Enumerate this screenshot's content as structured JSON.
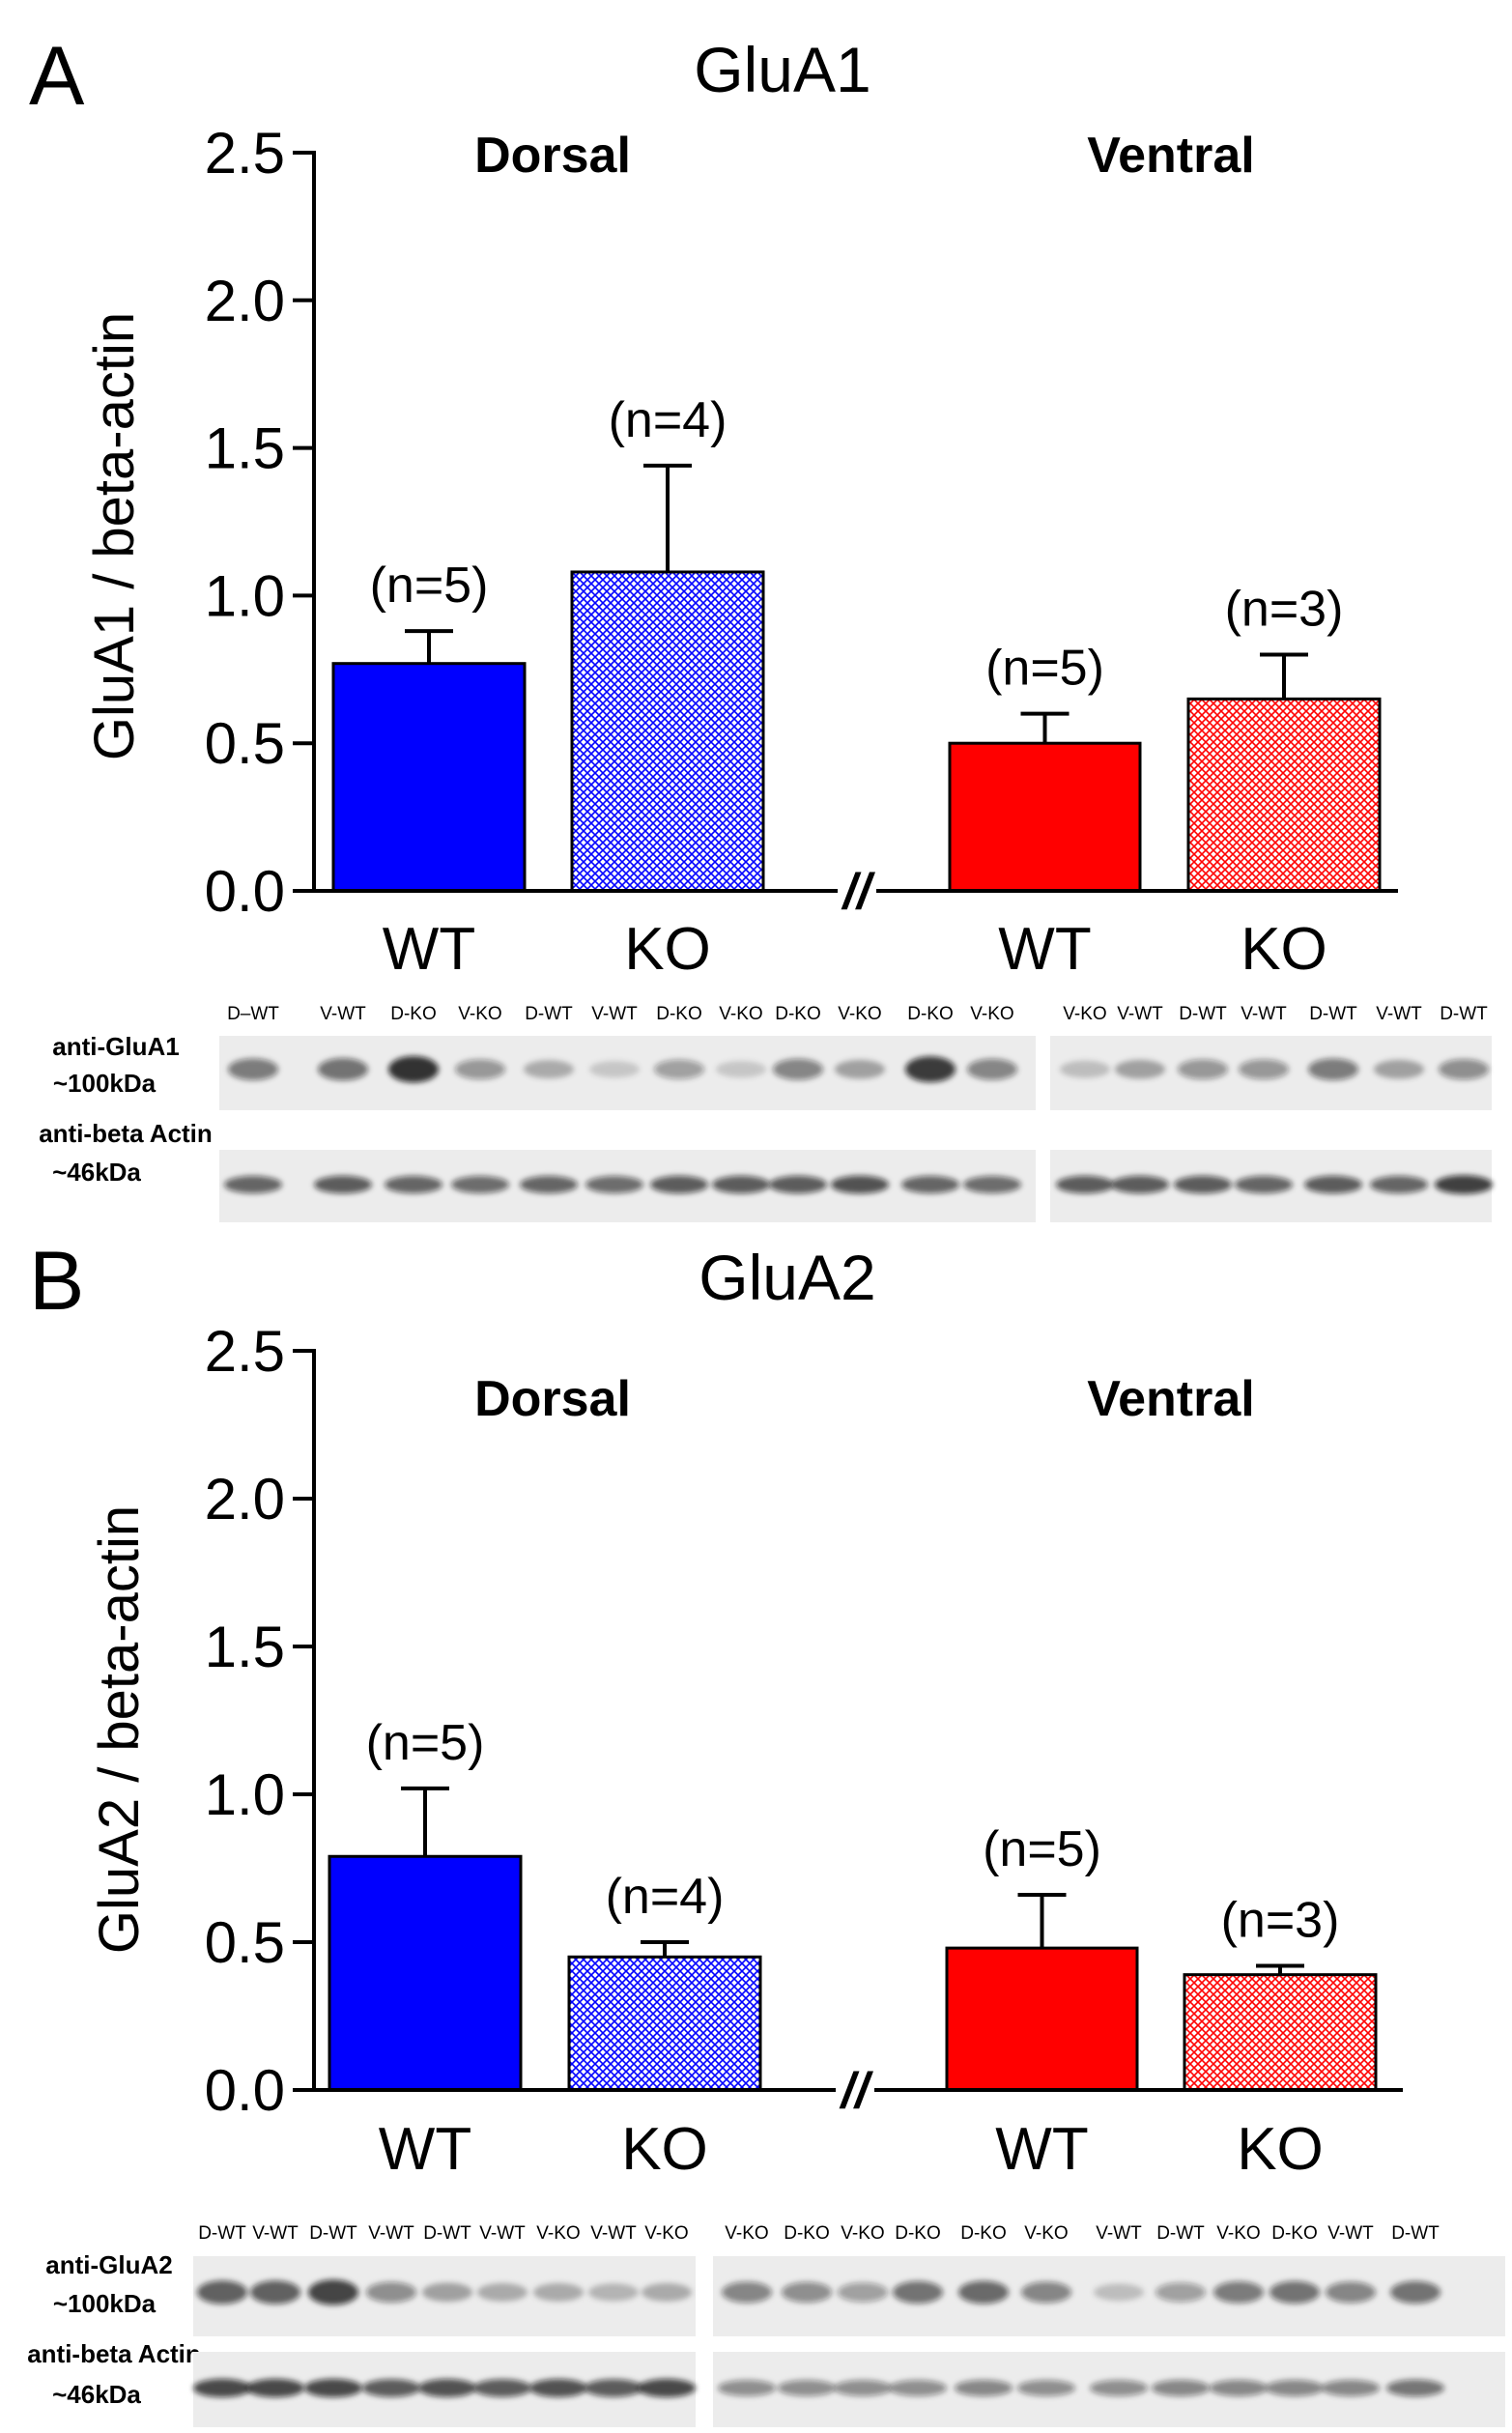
{
  "panels": [
    {
      "letter": "A",
      "chart_data": {
        "type": "bar",
        "title": "GluA1",
        "ylabel": "GluA1 / beta-actin",
        "ylim": [
          0,
          2.5
        ],
        "yticks": [
          "0.0",
          "0.5",
          "1.0",
          "1.5",
          "2.0",
          "2.5"
        ],
        "groups": [
          "Dorsal",
          "Ventral"
        ],
        "categories": [
          "WT",
          "KO",
          "WT",
          "KO"
        ],
        "values": [
          0.77,
          1.08,
          0.5,
          0.65
        ],
        "errors": [
          0.11,
          0.36,
          0.1,
          0.15
        ],
        "n_labels": [
          "(n=5)",
          "(n=4)",
          "(n=5)",
          "(n=3)"
        ],
        "break_mark": "//"
      },
      "blot": {
        "target_label": [
          "anti-GluA1",
          "~100kDa"
        ],
        "control_label": [
          "anti-beta Actin",
          "~46kDa"
        ],
        "left_lanes": [
          "D–WT",
          "V-WT",
          "D-KO",
          "V-KO",
          "D-WT",
          "V-WT",
          "D-KO",
          "V-KO",
          "D-KO",
          "V-KO",
          "D-KO",
          "V-KO"
        ],
        "right_lanes": [
          "V-KO",
          "V-WT",
          "D-WT",
          "V-WT",
          "D-WT",
          "V-WT",
          "D-WT"
        ],
        "target_left_intensity": [
          0.55,
          0.6,
          0.95,
          0.4,
          0.25,
          0.1,
          0.35,
          0.1,
          0.5,
          0.3,
          0.9,
          0.5
        ],
        "target_right_intensity": [
          0.15,
          0.3,
          0.4,
          0.4,
          0.55,
          0.3,
          0.45
        ],
        "control_left_intensity": [
          0.7,
          0.75,
          0.7,
          0.65,
          0.7,
          0.65,
          0.75,
          0.75,
          0.75,
          0.8,
          0.7,
          0.65
        ],
        "control_right_intensity": [
          0.75,
          0.75,
          0.75,
          0.7,
          0.75,
          0.7,
          0.9
        ]
      },
      "colors": {
        "dorsal": "#0000ff",
        "ventral": "#ff0000"
      }
    },
    {
      "letter": "B",
      "chart_data": {
        "type": "bar",
        "title": "GluA2",
        "ylabel": "GluA2 / beta-actin",
        "ylim": [
          0,
          2.5
        ],
        "yticks": [
          "0.0",
          "0.5",
          "1.0",
          "1.5",
          "2.0",
          "2.5"
        ],
        "groups": [
          "Dorsal",
          "Ventral"
        ],
        "categories": [
          "WT",
          "KO",
          "WT",
          "KO"
        ],
        "values": [
          0.79,
          0.45,
          0.48,
          0.39
        ],
        "errors": [
          0.23,
          0.05,
          0.18,
          0.03
        ],
        "n_labels": [
          "(n=5)",
          "(n=4)",
          "(n=5)",
          "(n=3)"
        ],
        "break_mark": "//"
      },
      "blot": {
        "target_label": [
          "anti-GluA2",
          "~100kDa"
        ],
        "control_label": [
          "anti-beta Actin",
          "~46kDa"
        ],
        "left_lanes": [
          "D-WT",
          "V-WT",
          "D-WT",
          "V-WT",
          "D-WT",
          "V-WT",
          "V-KO",
          "V-WT",
          "V-KO"
        ],
        "right_lanes": [
          "V-KO",
          "D-KO",
          "V-KO",
          "D-KO",
          "D-KO",
          "V-KO",
          "V-WT",
          "D-WT",
          "V-KO",
          "D-KO",
          "V-WT",
          "D-WT"
        ],
        "target_left_intensity": [
          0.7,
          0.7,
          0.85,
          0.45,
          0.3,
          0.25,
          0.25,
          0.2,
          0.25
        ],
        "target_right_intensity": [
          0.5,
          0.45,
          0.35,
          0.6,
          0.65,
          0.5,
          0.15,
          0.35,
          0.55,
          0.6,
          0.5,
          0.6
        ],
        "control_left_intensity": [
          0.85,
          0.85,
          0.85,
          0.75,
          0.8,
          0.75,
          0.8,
          0.75,
          0.85
        ],
        "control_right_intensity": [
          0.45,
          0.45,
          0.45,
          0.45,
          0.5,
          0.45,
          0.45,
          0.5,
          0.5,
          0.5,
          0.5,
          0.6
        ]
      },
      "colors": {
        "dorsal": "#0000ff",
        "ventral": "#ff0000"
      }
    }
  ]
}
